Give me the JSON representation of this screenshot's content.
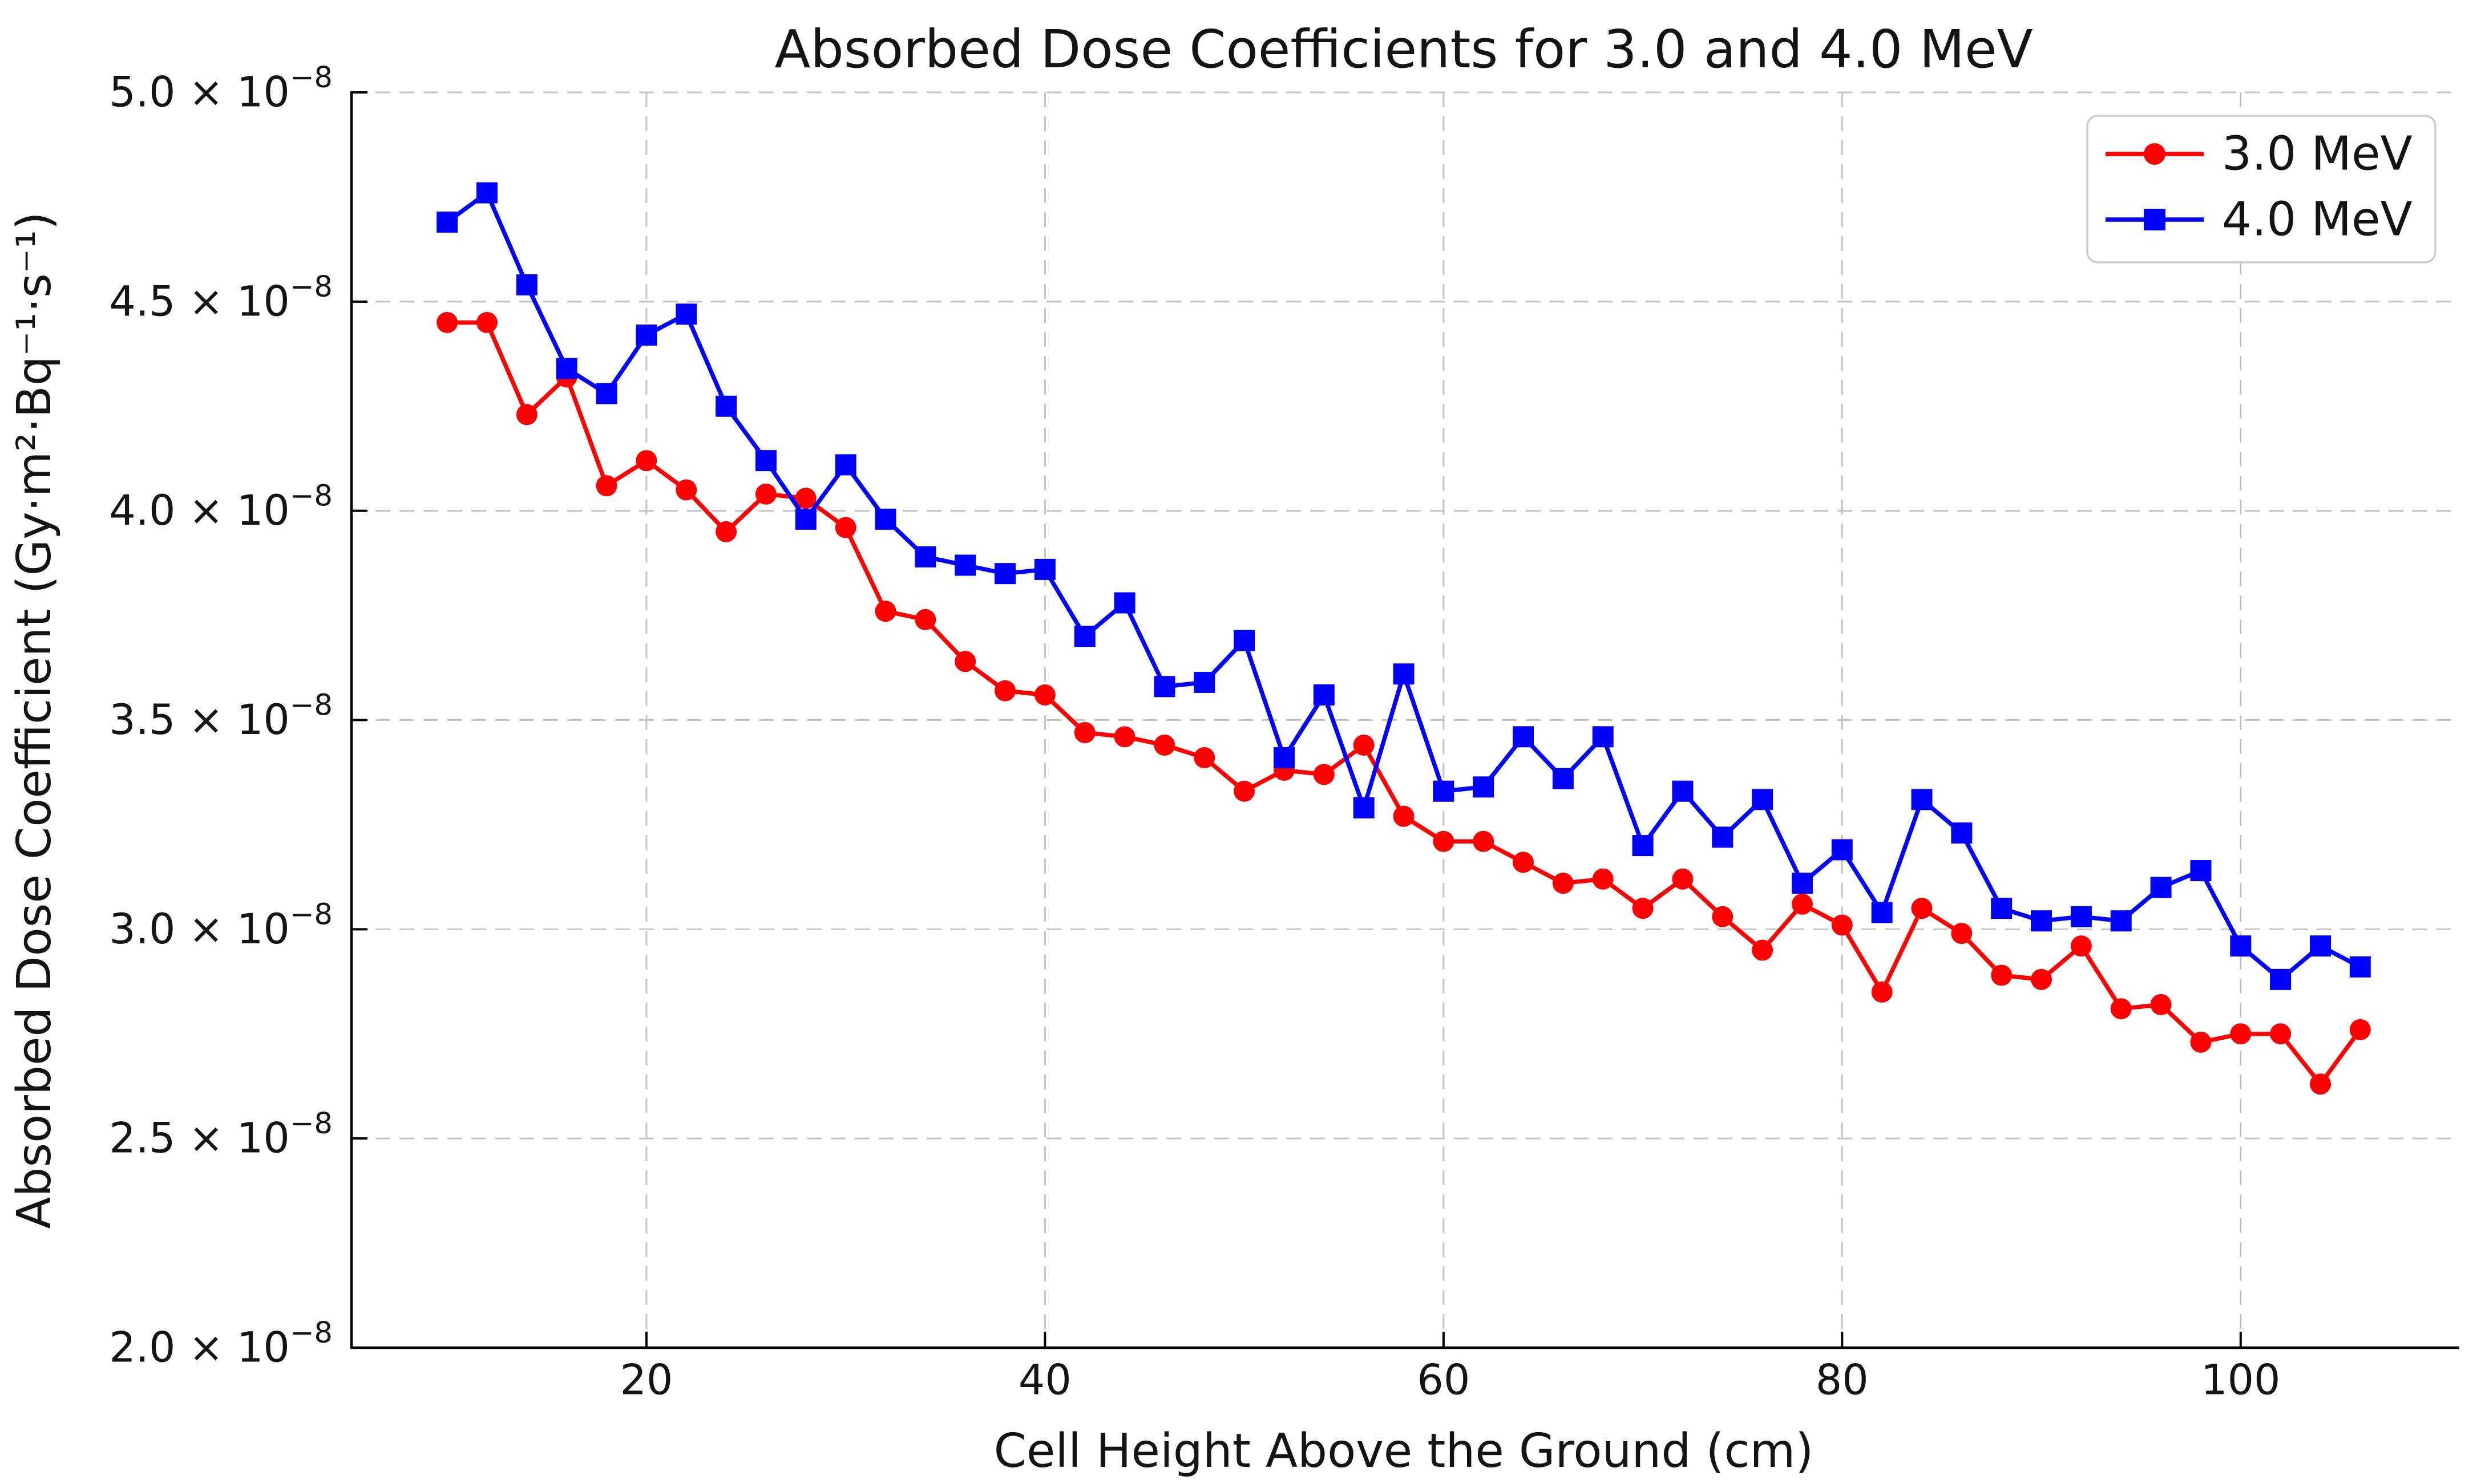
{
  "chart_data": {
    "type": "line",
    "title": "Absorbed Dose Coefficients for 3.0 and 4.0 MeV",
    "xlabel": "Cell Height Above the Ground (cm)",
    "ylabel": "Absorbed Dose Coefficient (Gy·m²·Bq⁻¹·s⁻¹)",
    "x_ticks": [
      20,
      40,
      60,
      80,
      100
    ],
    "y_tick_mantissas": [
      5.0,
      4.5,
      4.0,
      3.5,
      3.0,
      2.5,
      2.0
    ],
    "y_exponent_label": "−8",
    "y_tick_suffix": " × 10",
    "xlim": [
      5.2,
      110.8
    ],
    "ylim_1e8": [
      2.0,
      5.0
    ],
    "grid": "dashed",
    "legend_position": "upper right",
    "x": [
      10,
      12,
      14,
      16,
      18,
      20,
      22,
      24,
      26,
      28,
      30,
      32,
      34,
      36,
      38,
      40,
      42,
      44,
      46,
      48,
      50,
      52,
      54,
      56,
      58,
      60,
      62,
      64,
      66,
      68,
      70,
      72,
      74,
      76,
      78,
      80,
      82,
      84,
      86,
      88,
      90,
      92,
      94,
      96,
      98,
      100,
      102,
      104,
      106
    ],
    "series": [
      {
        "name": "3.0 MeV",
        "color": "#ff0000",
        "marker": "circle",
        "values_1e8": [
          4.45,
          4.45,
          4.23,
          4.32,
          4.06,
          4.12,
          4.05,
          3.95,
          4.04,
          4.03,
          3.96,
          3.76,
          3.74,
          3.64,
          3.57,
          3.56,
          3.47,
          3.46,
          3.44,
          3.41,
          3.33,
          3.38,
          3.37,
          3.44,
          3.27,
          3.21,
          3.21,
          3.16,
          3.11,
          3.12,
          3.05,
          3.12,
          3.03,
          2.95,
          3.06,
          3.01,
          2.85,
          3.05,
          2.99,
          2.89,
          2.88,
          2.96,
          2.81,
          2.82,
          2.73,
          2.75,
          2.75,
          2.63,
          2.76
        ]
      },
      {
        "name": "4.0 MeV",
        "color": "#0000ff",
        "marker": "square",
        "values_1e8": [
          4.69,
          4.76,
          4.54,
          4.34,
          4.28,
          4.42,
          4.47,
          4.25,
          4.12,
          3.98,
          4.11,
          3.98,
          3.89,
          3.87,
          3.85,
          3.86,
          3.7,
          3.78,
          3.58,
          3.59,
          3.69,
          3.41,
          3.56,
          3.29,
          3.61,
          3.33,
          3.34,
          3.46,
          3.36,
          3.46,
          3.2,
          3.33,
          3.22,
          3.31,
          3.11,
          3.19,
          3.04,
          3.31,
          3.23,
          3.05,
          3.02,
          3.03,
          3.02,
          3.1,
          3.14,
          2.96,
          2.88,
          2.96,
          2.91
        ]
      }
    ]
  }
}
